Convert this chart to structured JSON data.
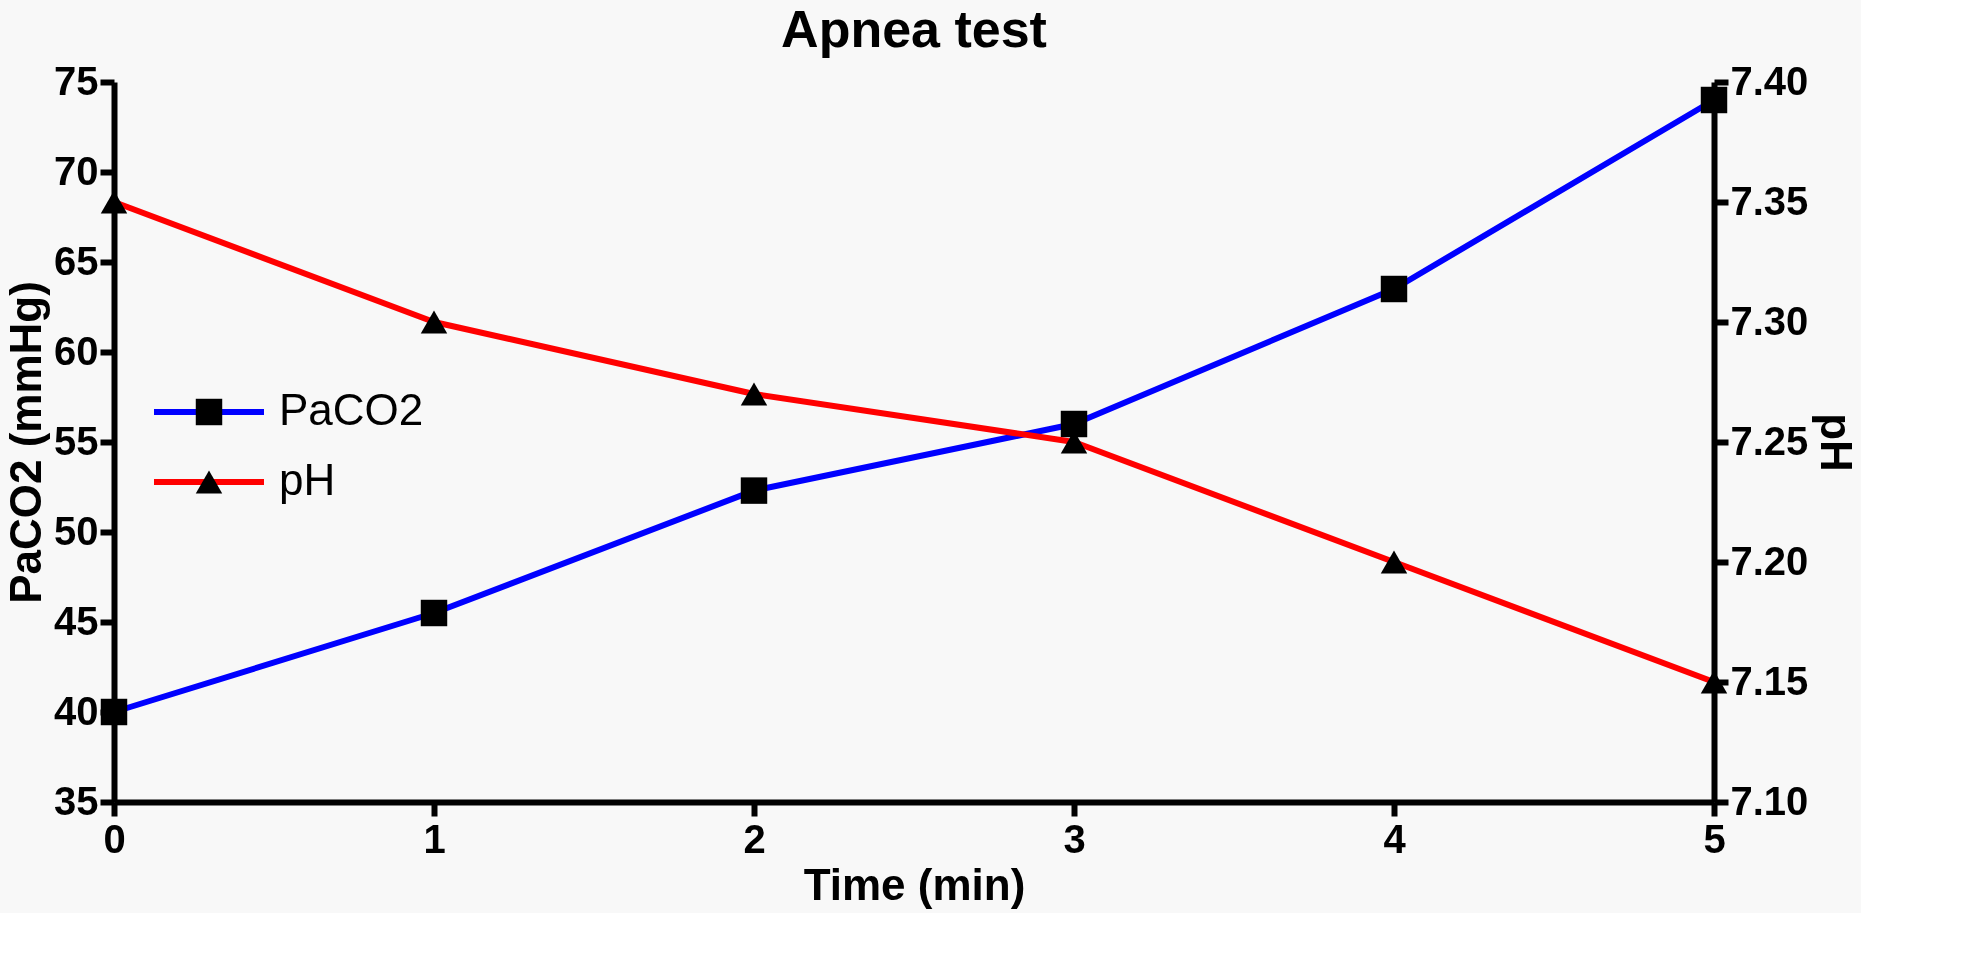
{
  "chart_data": {
    "type": "line",
    "title": "Apnea test",
    "xlabel": "Time (min)",
    "ylabel": "PaCO2 (mmHg)",
    "y2label": "pH",
    "x": [
      0,
      1,
      2,
      3,
      4,
      5
    ],
    "xlim": [
      0,
      5
    ],
    "xticks": [
      0,
      1,
      2,
      3,
      4,
      5
    ],
    "ylim": [
      35,
      75
    ],
    "yticks": [
      35,
      40,
      45,
      50,
      55,
      60,
      65,
      70,
      75
    ],
    "y2lim": [
      7.1,
      7.4
    ],
    "y2ticks": [
      {
        "value": 7.1,
        "label": "7.10"
      },
      {
        "value": 7.15,
        "label": "7.15"
      },
      {
        "value": 7.2,
        "label": "7.20"
      },
      {
        "value": 7.25,
        "label": "7.25"
      },
      {
        "value": 7.3,
        "label": "7.30"
      },
      {
        "value": 7.35,
        "label": "7.35"
      },
      {
        "value": 7.4,
        "label": "7.40"
      }
    ],
    "series": [
      {
        "name": "PaCO2",
        "color": "#0000ff",
        "marker": "square",
        "values": [
          40,
          45.5,
          52.3,
          56,
          63.5,
          74
        ]
      },
      {
        "name": "pH",
        "color": "#ff0000",
        "marker": "triangle",
        "axis": "y2",
        "values": [
          7.35,
          7.3,
          7.27,
          7.25,
          7.2,
          7.15
        ]
      }
    ],
    "legend": "left",
    "grid": false
  }
}
